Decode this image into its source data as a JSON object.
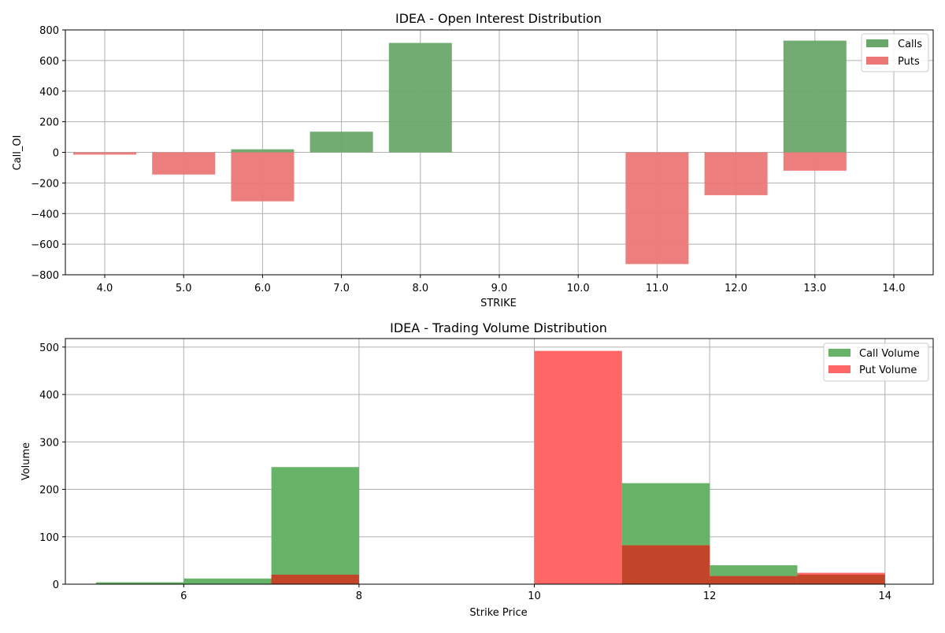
{
  "chart_data": [
    {
      "type": "bar",
      "title": "IDEA - Open Interest Distribution",
      "xlabel": "STRIKE",
      "ylabel": "Call_OI",
      "categories": [
        "4.0",
        "5.0",
        "6.0",
        "7.0",
        "8.0",
        "9.0",
        "10.0",
        "11.0",
        "12.0",
        "13.0",
        "14.0"
      ],
      "ylim": [
        -800,
        800
      ],
      "yticks": [
        "800",
        "600",
        "400",
        "200",
        "0",
        "−200",
        "−400",
        "−600",
        "−800"
      ],
      "grid": true,
      "legend_position": "top-right",
      "series": [
        {
          "name": "Calls",
          "color": "#6aa86a",
          "values": [
            0,
            0,
            20,
            135,
            715,
            0,
            0,
            0,
            0,
            730,
            0
          ]
        },
        {
          "name": "Puts",
          "color": "#ec7777",
          "values": [
            -15,
            -145,
            -320,
            0,
            0,
            0,
            0,
            -730,
            -280,
            -120,
            0
          ]
        }
      ]
    },
    {
      "type": "bar",
      "title": "IDEA - Trading Volume Distribution",
      "xlabel": "Strike Price",
      "ylabel": "Volume",
      "xlim": [
        4.65,
        14.55
      ],
      "ylim": [
        0,
        518
      ],
      "xticks": [
        "6",
        "8",
        "10",
        "12",
        "14"
      ],
      "yticks": [
        "0",
        "100",
        "200",
        "300",
        "400",
        "500"
      ],
      "grid": true,
      "legend_position": "top-right",
      "bin_edges": [
        5,
        6,
        7,
        8,
        9,
        10,
        11,
        12,
        13,
        14
      ],
      "series": [
        {
          "name": "Call Volume",
          "color": "#67b367",
          "values": [
            4,
            12,
            247,
            0,
            0,
            0,
            213,
            40,
            20
          ]
        },
        {
          "name": "Put Volume",
          "color": "#ff6666",
          "values": [
            0,
            0,
            20,
            0,
            0,
            492,
            82,
            17,
            24
          ]
        }
      ],
      "overlap_color": "#c24529"
    }
  ]
}
